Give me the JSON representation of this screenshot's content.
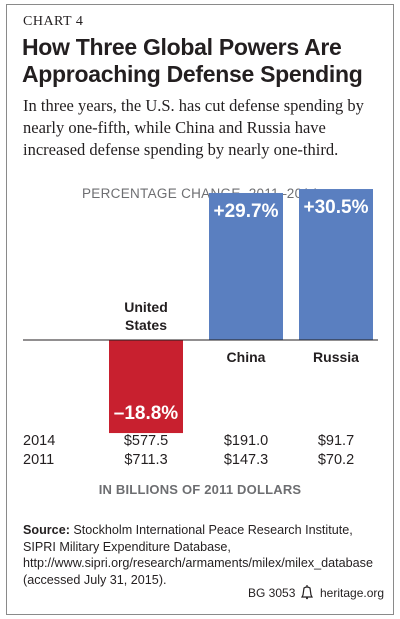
{
  "chart_label": "CHART 4",
  "title": "How Three Global Powers Are Approaching Defense Spending",
  "subtitle": "In three years, the U.S. has cut defense spending by nearly one-fifth, while China and Russia have increased defense spending by nearly one-third.",
  "units_label": "IN BILLIONS OF 2011 DOLLARS",
  "source_label": "Source:",
  "source_text": "Stockholm International Peace Research Institute, SIPRI Military Expenditure Database, http://www.sipri.org/research/armaments/milex/milex_database (accessed July 31, 2015).",
  "footer": {
    "id": "BG 3053",
    "site": "heritage.org"
  },
  "colors": {
    "negative": "#c8202f",
    "positive": "#5a7fc0",
    "muted": "#6d6e71"
  },
  "chart_data": {
    "type": "bar",
    "title": "PERCENTAGE CHANGE, 2011–2014",
    "categories": [
      "United States",
      "China",
      "Russia"
    ],
    "values": [
      -18.8,
      29.7,
      30.5
    ],
    "value_labels": [
      "–18.8%",
      "+29.7%",
      "+30.5%"
    ],
    "table": {
      "rows": [
        {
          "year": "2014",
          "values": [
            "$577.5",
            "$191.0",
            "$91.7"
          ]
        },
        {
          "year": "2011",
          "values": [
            "$711.3",
            "$147.3",
            "$70.2"
          ]
        }
      ]
    }
  }
}
